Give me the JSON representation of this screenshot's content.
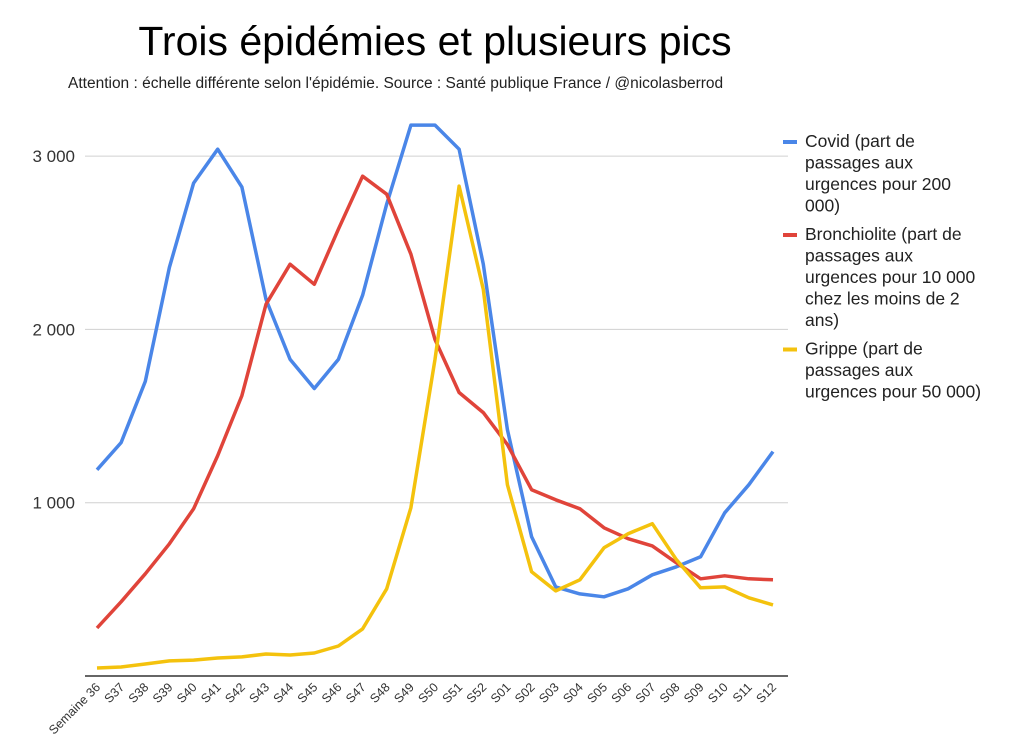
{
  "chart_data": {
    "type": "line",
    "title": "Trois épidémies et plusieurs pics",
    "subtitle": "Attention : échelle différente selon l'épidémie. Source : Santé publique France / @nicolasberrod",
    "xlabel": "",
    "ylabel": "",
    "ylim": [
      0,
      3200
    ],
    "yticks": [
      1000,
      2000,
      3000
    ],
    "ytick_labels": [
      "1 000",
      "2 000",
      "3 000"
    ],
    "grid": true,
    "legend_position": "right",
    "categories": [
      "Semaine 36",
      "S37",
      "S38",
      "S39",
      "S40",
      "S41",
      "S42",
      "S43",
      "S44",
      "S45",
      "S46",
      "S47",
      "S48",
      "S49",
      "S50",
      "S51",
      "S52",
      "S01",
      "S02",
      "S03",
      "S04",
      "S05",
      "S06",
      "S07",
      "S08",
      "S09",
      "S10",
      "S11",
      "S12"
    ],
    "series": [
      {
        "name": "Covid (part de passages aux urgences pour 200 000)",
        "legend_lines": [
          "Covid (part de",
          "passages aux",
          "urgences pour 200",
          "000)"
        ],
        "color": "#4a86e8",
        "values": [
          1190,
          1347,
          1700,
          2358,
          2844,
          3040,
          2821,
          2173,
          1827,
          1659,
          1827,
          2197,
          2723,
          3179,
          3179,
          3040,
          2376,
          1422,
          803,
          514,
          474,
          457,
          503,
          584,
          630,
          688,
          942,
          1104,
          1295
        ]
      },
      {
        "name": "Bronchiolite (part de passages aux urgences pour 10 000 chez les moins de 2 ans)",
        "legend_lines": [
          "Bronchiolite (part de",
          "passages aux",
          "urgences pour 10 000",
          "chez les moins de 2",
          "ans)"
        ],
        "color": "#e0443a",
        "values": [
          277,
          428,
          590,
          763,
          965,
          1272,
          1618,
          2145,
          2376,
          2260,
          2578,
          2884,
          2780,
          2434,
          1942,
          1636,
          1520,
          1335,
          1075,
          1017,
          965,
          855,
          792,
          751,
          653,
          561,
          578,
          561,
          555
        ]
      },
      {
        "name": "Grippe (part de passages aux urgences pour 50 000)",
        "legend_lines": [
          "Grippe (part de",
          "passages aux",
          "urgences pour 50 000)"
        ],
        "color": "#f4c20d",
        "values": [
          46,
          52,
          69,
          87,
          92,
          104,
          110,
          127,
          121,
          133,
          173,
          272,
          503,
          971,
          1827,
          2827,
          2231,
          1104,
          601,
          491,
          555,
          740,
          821,
          879,
          671,
          509,
          514,
          451,
          410
        ]
      }
    ]
  }
}
